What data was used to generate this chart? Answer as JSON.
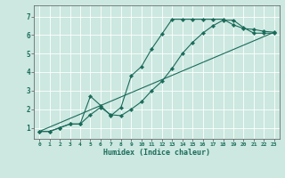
{
  "xlabel": "Humidex (Indice chaleur)",
  "background_color": "#cce8e0",
  "grid_color": "#b0d0c8",
  "line_color": "#1a6b5a",
  "xlim": [
    -0.5,
    23.5
  ],
  "ylim": [
    0.4,
    7.6
  ],
  "xticks": [
    0,
    1,
    2,
    3,
    4,
    5,
    6,
    7,
    8,
    9,
    10,
    11,
    12,
    13,
    14,
    15,
    16,
    17,
    18,
    19,
    20,
    21,
    22,
    23
  ],
  "yticks": [
    1,
    2,
    3,
    4,
    5,
    6,
    7
  ],
  "line1_x": [
    0,
    1,
    2,
    3,
    4,
    5,
    6,
    7,
    8,
    9,
    10,
    11,
    12,
    13,
    14,
    15,
    16,
    17,
    18,
    19,
    20,
    21,
    22,
    23
  ],
  "line1_y": [
    0.8,
    0.8,
    1.0,
    1.2,
    1.2,
    2.7,
    2.2,
    1.65,
    2.1,
    3.8,
    4.3,
    5.25,
    6.05,
    6.85,
    6.85,
    6.85,
    6.85,
    6.85,
    6.85,
    6.55,
    6.35,
    6.3,
    6.2,
    6.15
  ],
  "line2_x": [
    0,
    1,
    2,
    3,
    4,
    5,
    6,
    7,
    8,
    9,
    10,
    11,
    12,
    13,
    14,
    15,
    16,
    17,
    18,
    19,
    20,
    21,
    22,
    23
  ],
  "line2_y": [
    0.8,
    0.8,
    1.0,
    1.2,
    1.2,
    1.7,
    2.1,
    1.7,
    1.65,
    2.0,
    2.4,
    3.0,
    3.5,
    4.2,
    5.0,
    5.6,
    6.1,
    6.5,
    6.8,
    6.8,
    6.4,
    6.1,
    6.1,
    6.1
  ],
  "line3_x": [
    0,
    23
  ],
  "line3_y": [
    0.8,
    6.15
  ]
}
